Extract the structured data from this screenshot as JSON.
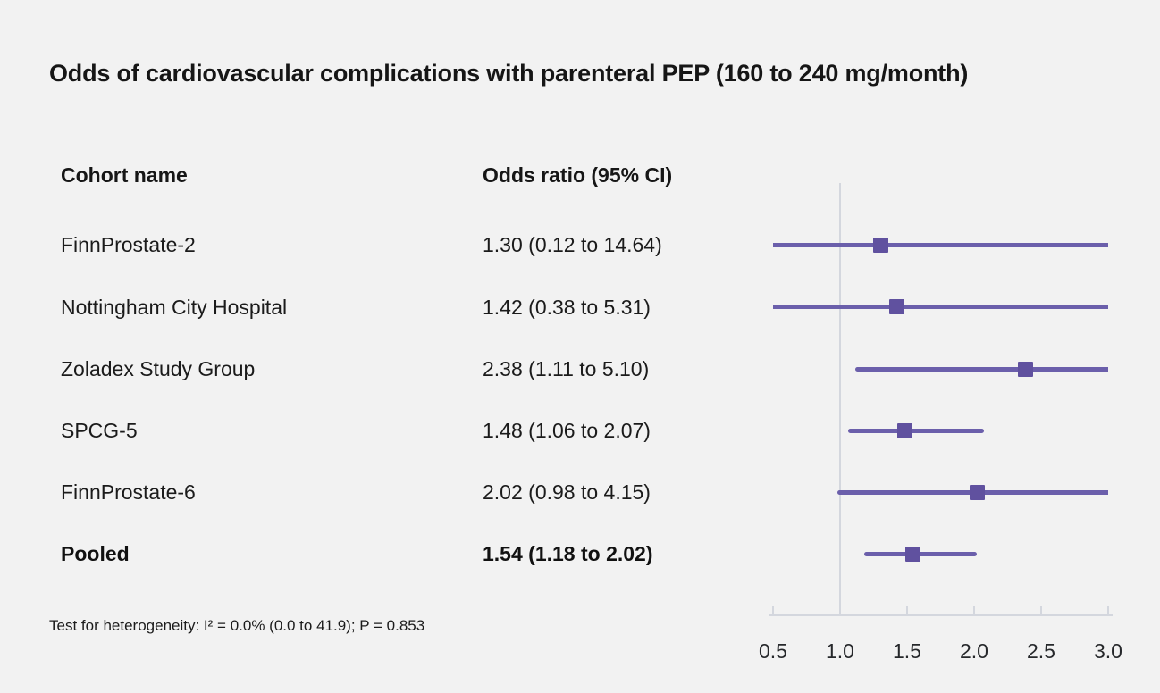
{
  "figure": {
    "title": "Odds of cardiovascular complications with parenteral PEP (160 to 240 mg/month)",
    "columns": {
      "cohort": "Cohort name",
      "odds_ratio": "Odds ratio (95% CI)"
    },
    "footnote": "Test for heterogeneity: I² = 0.0% (0.0 to 41.9); P = 0.853"
  },
  "colors": {
    "background": "#f2f2f2",
    "ci_line": "#6b5fab",
    "marker": "#60519f",
    "axis": "#d4d7de",
    "text": "#161616"
  },
  "chart_data": {
    "type": "scatter",
    "variant": "forest-plot",
    "title": "Odds of cardiovascular complications with parenteral PEP (160 to 240 mg/month)",
    "xlabel": "",
    "ylabel": "",
    "xlim": [
      0.5,
      3.0
    ],
    "x_ticks": [
      "0.5",
      "1.0",
      "1.5",
      "2.0",
      "2.5",
      "3.0"
    ],
    "x_tick_values": [
      0.5,
      1.0,
      1.5,
      2.0,
      2.5,
      3.0
    ],
    "reference_line_x": 1.0,
    "grid": false,
    "legend": "none",
    "rows": [
      {
        "cohort": "FinnProstate-2",
        "or_text": "1.30 (0.12 to 14.64)",
        "estimate": 1.3,
        "ci_low": 0.12,
        "ci_high": 14.64,
        "pooled": false
      },
      {
        "cohort": "Nottingham City Hospital",
        "or_text": "1.42 (0.38 to 5.31)",
        "estimate": 1.42,
        "ci_low": 0.38,
        "ci_high": 5.31,
        "pooled": false
      },
      {
        "cohort": "Zoladex Study Group",
        "or_text": "2.38 (1.11 to 5.10)",
        "estimate": 2.38,
        "ci_low": 1.11,
        "ci_high": 5.1,
        "pooled": false
      },
      {
        "cohort": "SPCG-5",
        "or_text": "1.48 (1.06 to 2.07)",
        "estimate": 1.48,
        "ci_low": 1.06,
        "ci_high": 2.07,
        "pooled": false
      },
      {
        "cohort": "FinnProstate-6",
        "or_text": "2.02 (0.98 to 4.15)",
        "estimate": 2.02,
        "ci_low": 0.98,
        "ci_high": 4.15,
        "pooled": false
      },
      {
        "cohort": "Pooled",
        "or_text": "1.54 (1.18 to 2.02)",
        "estimate": 1.54,
        "ci_low": 1.18,
        "ci_high": 2.02,
        "pooled": true
      }
    ],
    "footnote": "Test for heterogeneity: I² = 0.0% (0.0 to 41.9); P = 0.853"
  }
}
